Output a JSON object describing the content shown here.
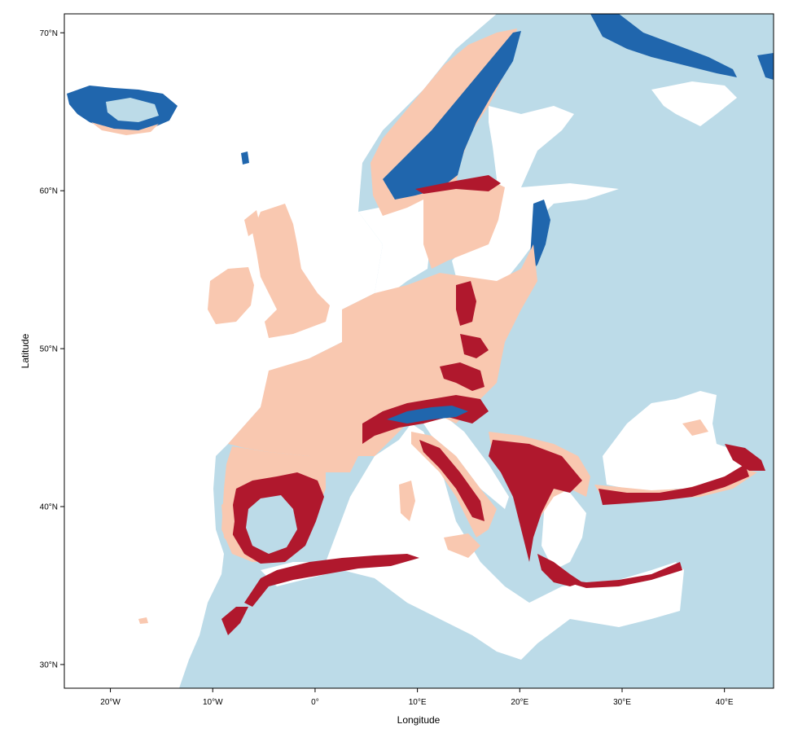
{
  "map": {
    "x_axis_label": "Longitude",
    "y_axis_label": "Latitude",
    "lon_range": [
      -24.5,
      44.8
    ],
    "lat_range": [
      28.5,
      71.2
    ],
    "x_ticks": [
      {
        "lon": -20,
        "label": "20°W"
      },
      {
        "lon": -10,
        "label": "10°W"
      },
      {
        "lon": 0,
        "label": "0°"
      },
      {
        "lon": 10,
        "label": "10°E"
      },
      {
        "lon": 20,
        "label": "20°E"
      },
      {
        "lon": 30,
        "label": "30°E"
      },
      {
        "lon": 40,
        "label": "40°E"
      }
    ],
    "y_ticks": [
      {
        "lat": 30,
        "label": "30°N"
      },
      {
        "lat": 40,
        "label": "40°N"
      },
      {
        "lat": 50,
        "label": "50°N"
      },
      {
        "lat": 60,
        "label": "60°N"
      },
      {
        "lat": 70,
        "label": "70°N"
      }
    ],
    "colors": {
      "background_land": "#bcdbe8",
      "sea": "#ffffff",
      "light_category": "#f9c8b0",
      "dark_red_category": "#b0182d",
      "dark_blue_category": "#2066ad",
      "frame": "#000000"
    }
  }
}
